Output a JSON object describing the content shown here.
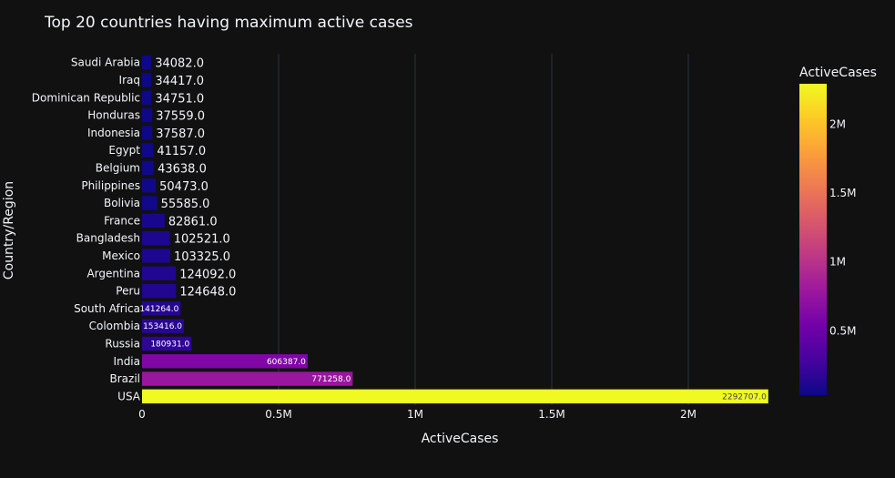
{
  "chart_data": {
    "type": "bar",
    "orientation": "horizontal",
    "title": "Top 20 countries having maximum active cases",
    "xlabel": "ActiveCases",
    "ylabel": "Country/Region",
    "xlim": [
      0,
      2413376
    ],
    "x_ticks": [
      {
        "value": 0,
        "label": "0"
      },
      {
        "value": 500000,
        "label": "0.5M"
      },
      {
        "value": 1000000,
        "label": "1M"
      },
      {
        "value": 1500000,
        "label": "1.5M"
      },
      {
        "value": 2000000,
        "label": "2M"
      }
    ],
    "grid": true,
    "categories": [
      "Saudi Arabia",
      "Iraq",
      "Dominican Republic",
      "Honduras",
      "Indonesia",
      "Egypt",
      "Belgium",
      "Philippines",
      "Bolivia",
      "France",
      "Bangladesh",
      "Mexico",
      "Argentina",
      "Peru",
      "South Africa",
      "Colombia",
      "Russia",
      "India",
      "Brazil",
      "USA"
    ],
    "values": [
      34082,
      34417,
      34751,
      37559,
      37587,
      41157,
      43638,
      50473,
      55585,
      82861,
      102521,
      103325,
      124092,
      124648,
      141264,
      153416,
      180931,
      606387,
      771258,
      2292707
    ],
    "value_labels": [
      "34082.0",
      "34417.0",
      "34751.0",
      "37559.0",
      "37587.0",
      "41157.0",
      "43638.0",
      "50473.0",
      "55585.0",
      "82861.0",
      "102521.0",
      "103325.0",
      "124092.0",
      "124648.0",
      "141264.0",
      "153416.0",
      "180931.0",
      "606387.0",
      "771258.0",
      "2292707.0"
    ],
    "colorbar": {
      "title": "ActiveCases",
      "colorscale": "plasma",
      "range": [
        34082,
        2292707
      ],
      "ticks": [
        {
          "value": 500000,
          "label": "0.5M"
        },
        {
          "value": 1000000,
          "label": "1M"
        },
        {
          "value": 1500000,
          "label": "1.5M"
        },
        {
          "value": 2000000,
          "label": "2M"
        }
      ]
    },
    "background": "#111111"
  }
}
